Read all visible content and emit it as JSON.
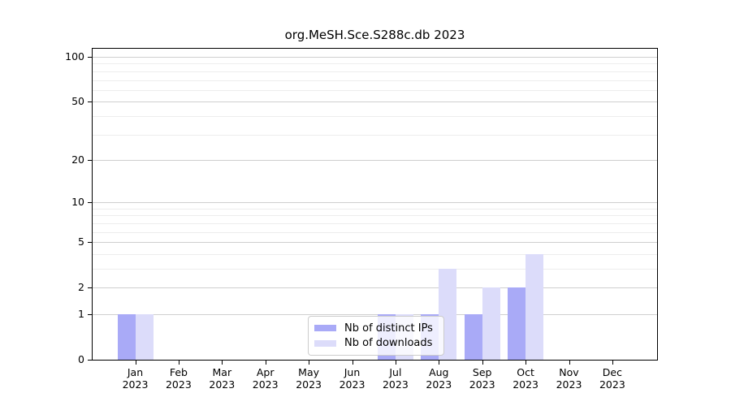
{
  "chart_data": {
    "type": "bar",
    "title": "org.MeSH.Sce.S288c.db 2023",
    "categories": [
      "Jan",
      "Feb",
      "Mar",
      "Apr",
      "May",
      "Jun",
      "Jul",
      "Aug",
      "Sep",
      "Oct",
      "Nov",
      "Dec"
    ],
    "x_tick_year": "2023",
    "series": [
      {
        "name": "Nb of distinct IPs",
        "color": "#a9aaf7",
        "values": [
          1,
          0,
          0,
          0,
          0,
          0,
          1,
          1,
          1,
          2,
          0,
          0
        ]
      },
      {
        "name": "Nb of downloads",
        "color": "#dcdcfa",
        "values": [
          1,
          0,
          0,
          0,
          0,
          0,
          1,
          3,
          2,
          4,
          0,
          0
        ]
      }
    ],
    "xlabel": "",
    "ylabel": "",
    "yscale": "log1p",
    "ylim": [
      0,
      113
    ],
    "y_major_ticks": [
      0,
      1,
      2,
      5,
      10,
      20,
      50,
      100
    ],
    "y_minor_gridlines": [
      3,
      4,
      6,
      7,
      8,
      9,
      30,
      40,
      60,
      70,
      80,
      90
    ],
    "grid": "horizontal",
    "legend_position": "bottom-center",
    "colors": {
      "axis": "#000000",
      "major_grid": "#cfcfcf",
      "minor_grid": "#ededed",
      "background": "#ffffff",
      "text": "#000000"
    }
  }
}
